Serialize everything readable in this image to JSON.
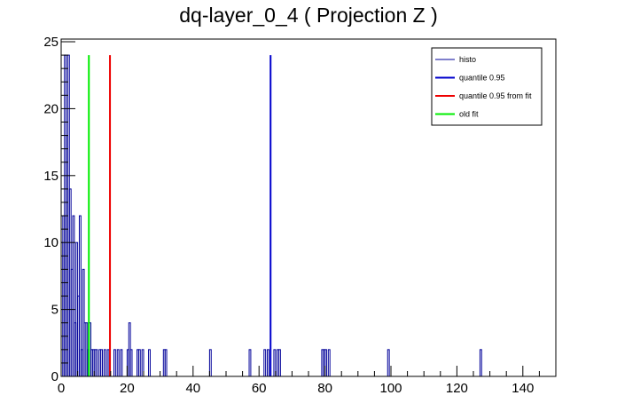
{
  "chart_data": {
    "type": "bar",
    "title": "dq-layer_0_4 ( Projection Z )",
    "xlabel": "",
    "ylabel": "",
    "xlim": [
      0,
      150
    ],
    "ylim": [
      0,
      25.2
    ],
    "x_ticks": [
      0,
      20,
      40,
      60,
      80,
      100,
      120,
      140
    ],
    "y_ticks": [
      0,
      5,
      10,
      15,
      20,
      25
    ],
    "grid": false,
    "legend_position": "top-right",
    "colors": {
      "histo": "#000099",
      "quantile": "#0000cc",
      "quantile_fit": "#ee0000",
      "old_fit": "#00ee00"
    },
    "legend": [
      {
        "label": "histo",
        "color": "#000099",
        "width": 1
      },
      {
        "label": "quantile 0.95",
        "color": "#0000cc",
        "width": 2
      },
      {
        "label": "quantile 0.95 from fit",
        "color": "#ee0000",
        "width": 2
      },
      {
        "label": "old fit",
        "color": "#00ee00",
        "width": 2
      }
    ],
    "histo": {
      "bin_width": 0.5,
      "bins": [
        {
          "x": 0.0,
          "y": 10
        },
        {
          "x": 0.5,
          "y": 12
        },
        {
          "x": 1.0,
          "y": 24
        },
        {
          "x": 1.5,
          "y": 18
        },
        {
          "x": 2.0,
          "y": 24
        },
        {
          "x": 2.5,
          "y": 14
        },
        {
          "x": 3.0,
          "y": 8
        },
        {
          "x": 3.5,
          "y": 12
        },
        {
          "x": 4.0,
          "y": 4
        },
        {
          "x": 4.5,
          "y": 10
        },
        {
          "x": 5.0,
          "y": 6
        },
        {
          "x": 5.5,
          "y": 12
        },
        {
          "x": 6.0,
          "y": 2
        },
        {
          "x": 6.5,
          "y": 8
        },
        {
          "x": 7.0,
          "y": 4
        },
        {
          "x": 7.5,
          "y": 4
        },
        {
          "x": 8.0,
          "y": 2
        },
        {
          "x": 8.5,
          "y": 4
        },
        {
          "x": 9.0,
          "y": 2
        },
        {
          "x": 9.5,
          "y": 2
        },
        {
          "x": 10.0,
          "y": 2
        },
        {
          "x": 10.5,
          "y": 2
        },
        {
          "x": 11.5,
          "y": 2
        },
        {
          "x": 12.0,
          "y": 2
        },
        {
          "x": 13.0,
          "y": 2
        },
        {
          "x": 14.0,
          "y": 2
        },
        {
          "x": 16.0,
          "y": 2
        },
        {
          "x": 17.0,
          "y": 2
        },
        {
          "x": 18.0,
          "y": 2
        },
        {
          "x": 20.0,
          "y": 2
        },
        {
          "x": 20.5,
          "y": 4
        },
        {
          "x": 21.0,
          "y": 2
        },
        {
          "x": 23.0,
          "y": 2
        },
        {
          "x": 23.5,
          "y": 2
        },
        {
          "x": 24.5,
          "y": 2
        },
        {
          "x": 26.5,
          "y": 2
        },
        {
          "x": 31.0,
          "y": 2
        },
        {
          "x": 31.5,
          "y": 2
        },
        {
          "x": 45.0,
          "y": 2
        },
        {
          "x": 57.0,
          "y": 2
        },
        {
          "x": 61.5,
          "y": 2
        },
        {
          "x": 62.5,
          "y": 2
        },
        {
          "x": 64.5,
          "y": 2
        },
        {
          "x": 65.5,
          "y": 2
        },
        {
          "x": 66.0,
          "y": 2
        },
        {
          "x": 79.0,
          "y": 2
        },
        {
          "x": 79.5,
          "y": 2
        },
        {
          "x": 80.0,
          "y": 2
        },
        {
          "x": 81.0,
          "y": 2
        },
        {
          "x": 99.0,
          "y": 2
        },
        {
          "x": 127.0,
          "y": 2
        }
      ]
    },
    "vertical_lines": [
      {
        "name": "quantile 0.95",
        "x": 63.5,
        "y": 24,
        "color": "#0000cc"
      },
      {
        "name": "quantile 0.95 from fit",
        "x": 14.8,
        "y": 24,
        "color": "#ee0000"
      },
      {
        "name": "old fit",
        "x": 8.4,
        "y": 24,
        "color": "#00ee00"
      }
    ]
  }
}
